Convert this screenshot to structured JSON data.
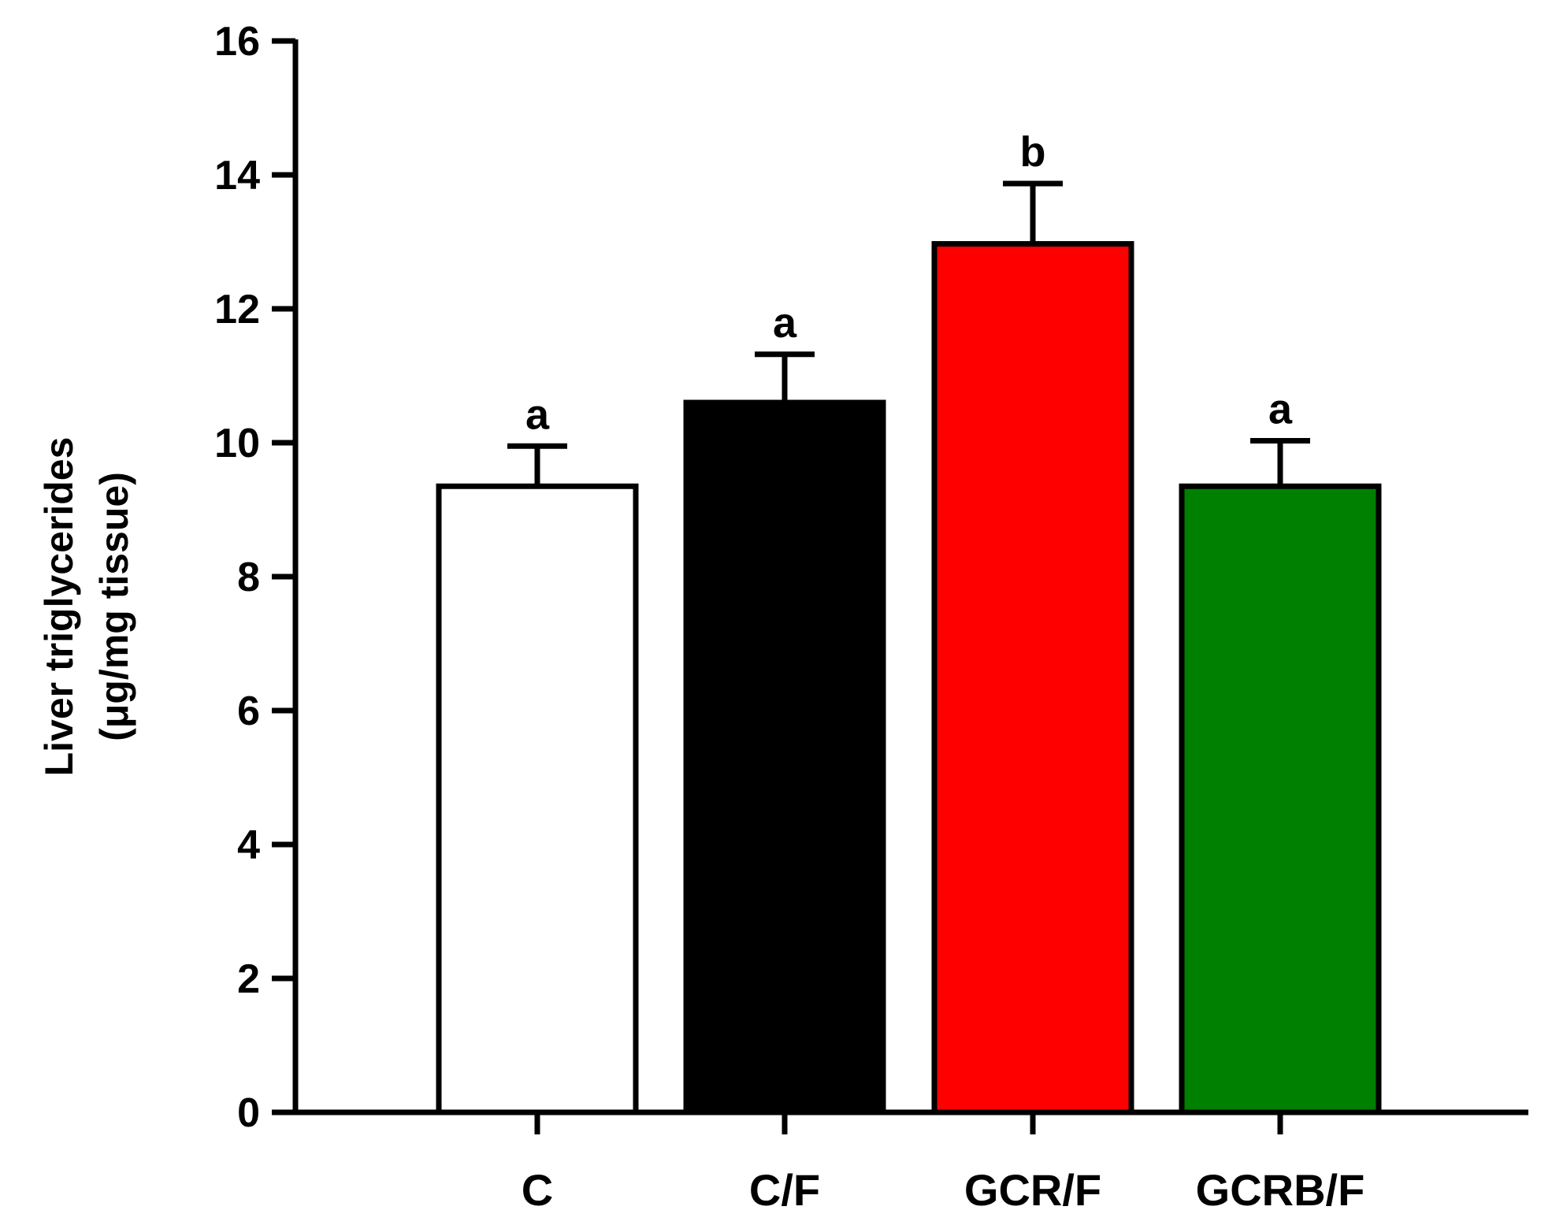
{
  "chart_data": {
    "type": "bar",
    "categories": [
      "C",
      "C/F",
      "GCR/F",
      "GCRB/F"
    ],
    "values": [
      9.35,
      10.6,
      12.97,
      9.35
    ],
    "errors": [
      0.6,
      0.72,
      0.9,
      0.68
    ],
    "significance_labels": [
      "a",
      "a",
      "b",
      "a"
    ],
    "bar_colors": [
      "#ffffff",
      "#000000",
      "#ff0000",
      "#008000"
    ],
    "title": "",
    "xlabel": "",
    "ylabel_line1": "Liver triglycerides",
    "ylabel_line2": "(μg/mg tissue)",
    "ylim": [
      0,
      16
    ],
    "yticks": [
      "0",
      "2",
      "4",
      "6",
      "8",
      "10",
      "12",
      "14",
      "16"
    ],
    "grid": false,
    "legend": "none"
  }
}
